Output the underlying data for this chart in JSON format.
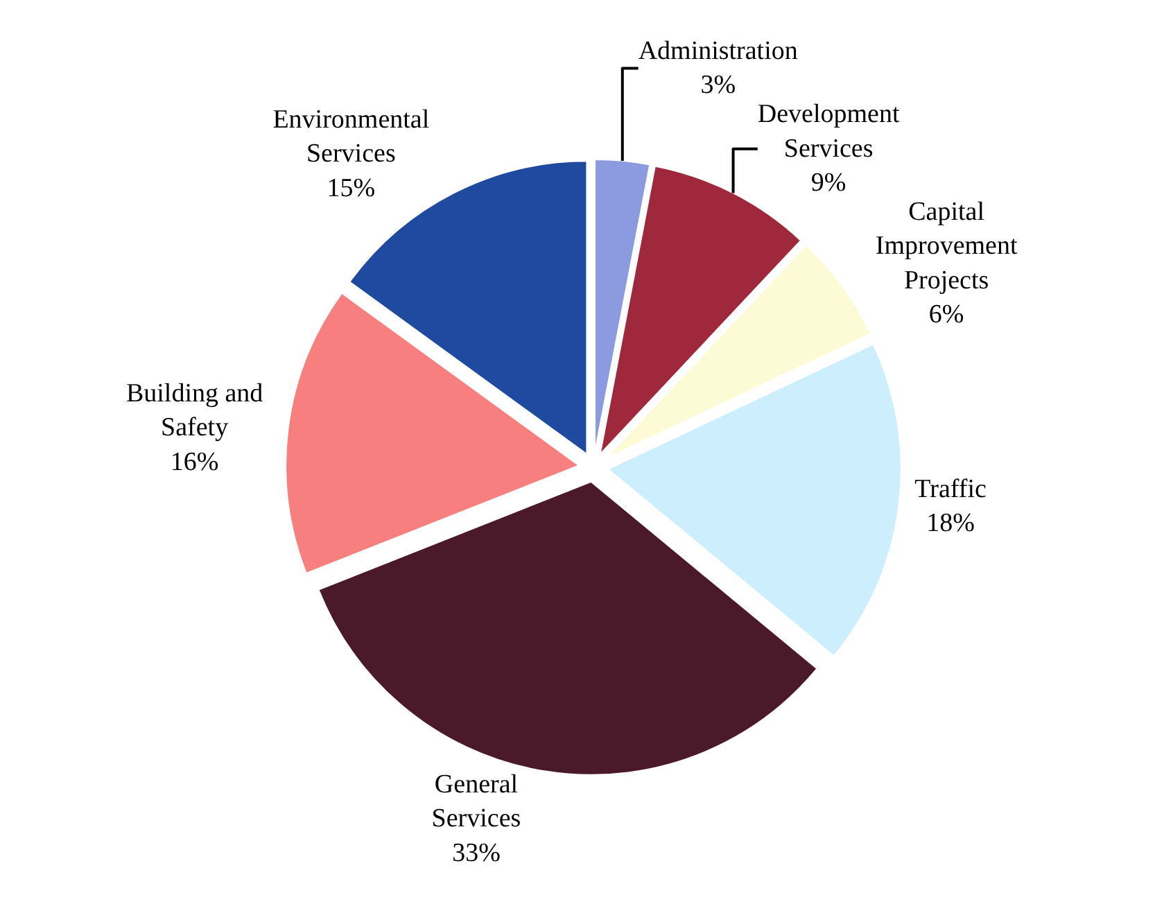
{
  "chart_data": {
    "type": "pie",
    "categories": [
      "Administration",
      "Development Services",
      "Capital Improvement Projects",
      "Traffic",
      "General Services",
      "Building and Safety",
      "Environmental Services"
    ],
    "values": [
      3,
      9,
      6,
      18,
      33,
      16,
      15
    ],
    "value_labels": [
      "3%",
      "9%",
      "6%",
      "18%",
      "33%",
      "16%",
      "15%"
    ],
    "colors": [
      "#8c9be0",
      "#a0283c",
      "#fdfbd6",
      "#cdeefc",
      "#4a1a2a",
      "#f77f7f",
      "#1f4aa0"
    ],
    "legend": false
  }
}
